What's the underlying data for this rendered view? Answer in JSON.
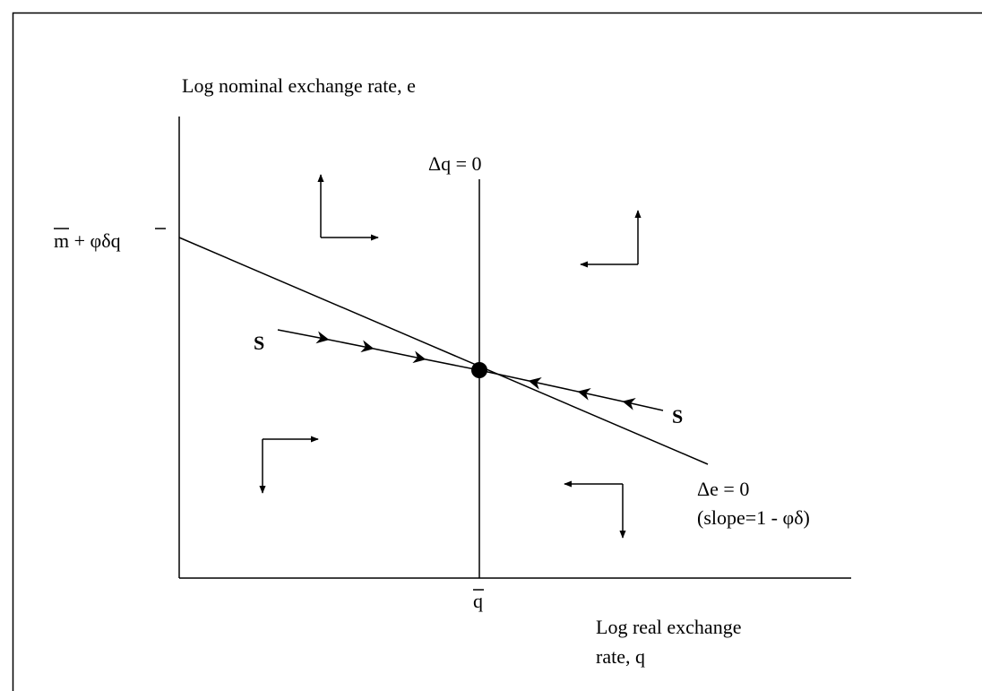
{
  "y_axis_label": "Log nominal exchange rate, e",
  "dq_label": "Δq = 0",
  "intercept_label": "m + φδq",
  "saddle_left_label": "S",
  "saddle_right_label": "S",
  "de_label": "Δe = 0",
  "slope_label": "(slope=1 - φδ)",
  "qbar_label": "q",
  "x_axis_label": [
    "Log real exchange",
    "rate, q"
  ]
}
